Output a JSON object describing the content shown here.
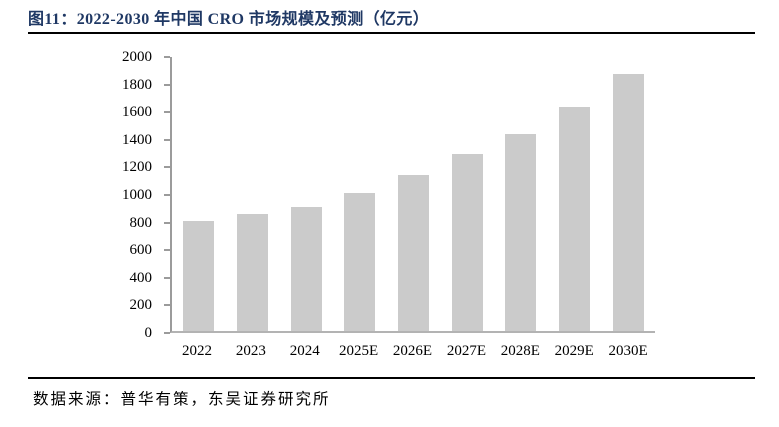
{
  "header": {
    "title": "图11：2022-2030 年中国 CRO 市场规模及预测（亿元）"
  },
  "footer": {
    "source": "数据来源：普华有策，东吴证券研究所"
  },
  "chart_data": {
    "type": "bar",
    "title": "2022-2030 年中国 CRO 市场规模及预测（亿元）",
    "unit": "亿元",
    "categories": [
      "2022",
      "2023",
      "2024",
      "2025E",
      "2026E",
      "2027E",
      "2028E",
      "2029E",
      "2030E"
    ],
    "values": [
      800,
      850,
      900,
      1000,
      1130,
      1280,
      1430,
      1620,
      1860
    ],
    "xlabel": "",
    "ylabel": "",
    "ylim": [
      0,
      2000
    ],
    "y_tick_step": 200,
    "y_ticks": [
      0,
      200,
      400,
      600,
      800,
      1000,
      1200,
      1400,
      1600,
      1800,
      2000
    ],
    "grid": false,
    "legend": "none",
    "bar_color": "#CBCBCB",
    "axis_color": "#9B9B9B",
    "baseline_color": "#B3B3B3"
  },
  "colors": {
    "title": "#1F3864",
    "rule": "#000000",
    "text": "#000000"
  }
}
